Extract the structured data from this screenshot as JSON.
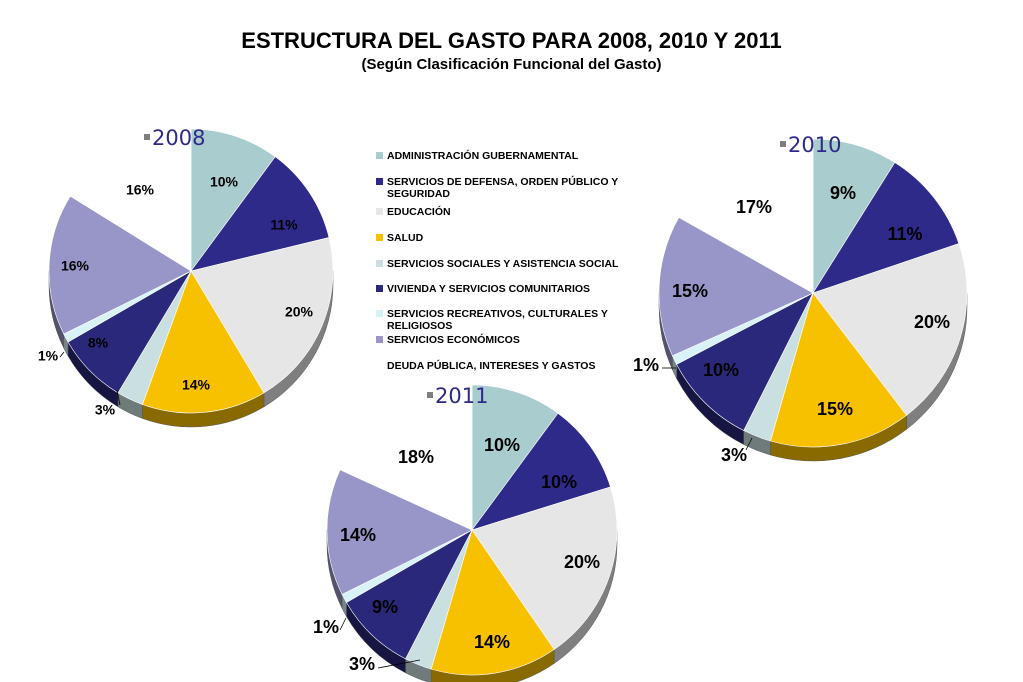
{
  "title": "ESTRUCTURA DEL GASTO PARA 2008, 2010 Y 2011",
  "subtitle": "(Según Clasificación Funcional del Gasto)",
  "legend": [
    {
      "label": "ADMINISTRACIÓN GUBERNAMENTAL",
      "color": "#a9cdcf"
    },
    {
      "label": "SERVICIOS DE DEFENSA, ORDEN PÚBLICO Y SEGURIDAD",
      "color": "#2e2a8a"
    },
    {
      "label": "EDUCACIÓN",
      "color": "#e6e6e6"
    },
    {
      "label": "SALUD",
      "color": "#f8c100"
    },
    {
      "label": "SERVICIOS SOCIALES Y ASISTENCIA SOCIAL",
      "color": "#c9dfe0"
    },
    {
      "label": "VIVIENDA Y SERVICIOS COMUNITARIOS",
      "color": "#2a287a"
    },
    {
      "label": "SERVICIOS RECREATIVOS, CULTURALES Y RELIGIOSOS",
      "color": "#d8f3f8"
    },
    {
      "label": "SERVICIOS ECONÓMICOS",
      "color": "#9896c8"
    },
    {
      "label": "DEUDA PÚBLICA, INTERESES Y GASTOS",
      "color": "#ffffff"
    }
  ],
  "chart_data": [
    {
      "type": "pie",
      "title": "2008",
      "title_marker_color": "#7f7f7f",
      "title_color": "#2e2a8a",
      "categories": [
        "ADMINISTRACIÓN GUBERNAMENTAL",
        "SERVICIOS DE DEFENSA, ORDEN PÚBLICO Y SEGURIDAD",
        "EDUCACIÓN",
        "SALUD",
        "SERVICIOS SOCIALES Y ASISTENCIA SOCIAL",
        "VIVIENDA Y SERVICIOS COMUNITARIOS",
        "SERVICIOS RECREATIVOS, CULTURALES Y RELIGIOSOS",
        "SERVICIOS ECONÓMICOS",
        "DEUDA PÚBLICA, INTERESES Y GASTOS"
      ],
      "values": [
        10,
        11,
        20,
        14,
        3,
        8,
        1,
        16,
        16
      ],
      "labels": [
        "10%",
        "11%",
        "20%",
        "14%",
        "3%",
        "8%",
        "1%",
        "16%",
        "16%"
      ]
    },
    {
      "type": "pie",
      "title": "2010",
      "title_marker_color": "#7f7f7f",
      "title_color": "#2e2a8a",
      "categories": [
        "ADMINISTRACIÓN GUBERNAMENTAL",
        "SERVICIOS DE DEFENSA, ORDEN PÚBLICO Y SEGURIDAD",
        "EDUCACIÓN",
        "SALUD",
        "SERVICIOS SOCIALES Y ASISTENCIA SOCIAL",
        "VIVIENDA Y SERVICIOS COMUNITARIOS",
        "SERVICIOS RECREATIVOS, CULTURALES Y RELIGIOSOS",
        "SERVICIOS ECONÓMICOS",
        "DEUDA PÚBLICA, INTERESES Y GASTOS"
      ],
      "values": [
        9,
        11,
        20,
        15,
        3,
        10,
        1,
        15,
        17
      ],
      "labels": [
        "9%",
        "11%",
        "20%",
        "15%",
        "3%",
        "10%",
        "1%",
        "15%",
        "17%"
      ]
    },
    {
      "type": "pie",
      "title": "2011",
      "title_marker_color": "#7f7f7f",
      "title_color": "#2e2a8a",
      "categories": [
        "ADMINISTRACIÓN GUBERNAMENTAL",
        "SERVICIOS DE DEFENSA, ORDEN PÚBLICO Y SEGURIDAD",
        "EDUCACIÓN",
        "SALUD",
        "SERVICIOS SOCIALES Y ASISTENCIA SOCIAL",
        "VIVIENDA Y SERVICIOS COMUNITARIOS",
        "SERVICIOS RECREATIVOS, CULTURALES Y RELIGIOSOS",
        "SERVICIOS ECONÓMICOS",
        "DEUDA PÚBLICA, INTERESES Y GASTOS"
      ],
      "values": [
        10,
        10,
        20,
        14,
        3,
        9,
        1,
        14,
        18
      ],
      "labels": [
        "10%",
        "10%",
        "20%",
        "14%",
        "3%",
        "9%",
        "1%",
        "14%",
        "18%"
      ]
    }
  ]
}
